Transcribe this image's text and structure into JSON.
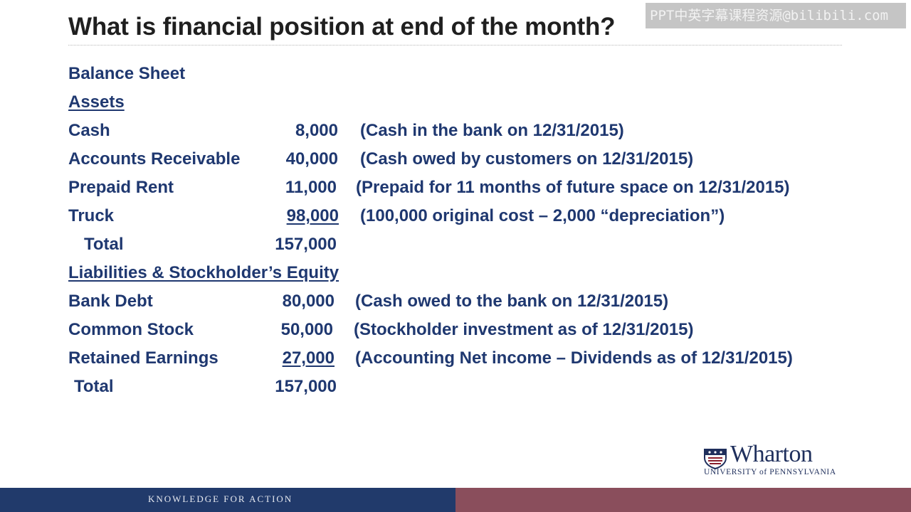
{
  "slide": {
    "title": "What is financial position at end of the month?",
    "watermark": "PPT中英字幕课程资源@bilibili.com",
    "heading": "Balance Sheet",
    "assets_header": "Assets",
    "assets": [
      {
        "label": "Cash",
        "amount": "8,000",
        "note": "(Cash in the bank on 12/31/2015)"
      },
      {
        "label": "Accounts Receivable",
        "amount": "40,000",
        "note": "(Cash owed by customers on 12/31/2015)"
      },
      {
        "label": "Prepaid Rent",
        "amount": "11,000",
        "note": "(Prepaid for 11 months of future space on 12/31/2015)"
      },
      {
        "label": "Truck",
        "amount": "98,000",
        "note": "(100,000 original cost – 2,000 “depreciation”)"
      }
    ],
    "assets_total": {
      "label": "Total",
      "amount": "157,000"
    },
    "liabilities_header": "Liabilities & Stockholder’s Equity",
    "liabilities": [
      {
        "label": "Bank Debt",
        "amount": "80,000",
        "note": "(Cash owed to the bank on 12/31/2015)"
      },
      {
        "label": "Common Stock",
        "amount": "50,000",
        "note": "(Stockholder investment as of 12/31/2015)"
      },
      {
        "label": "Retained Earnings",
        "amount": "27,000",
        "note": "(Accounting Net income – Dividends as of 12/31/2015)"
      }
    ],
    "liabilities_total": {
      "label": "Total",
      "amount": "157,000"
    }
  },
  "branding": {
    "logo_word": "Wharton",
    "logo_sub": "UNIVERSITY of PENNSYLVANIA",
    "footer_tagline": "KNOWLEDGE FOR ACTION"
  },
  "colors": {
    "body_text": "#1f3870",
    "footer_blue": "#213a6b",
    "footer_maroon": "#8a4e5c"
  }
}
